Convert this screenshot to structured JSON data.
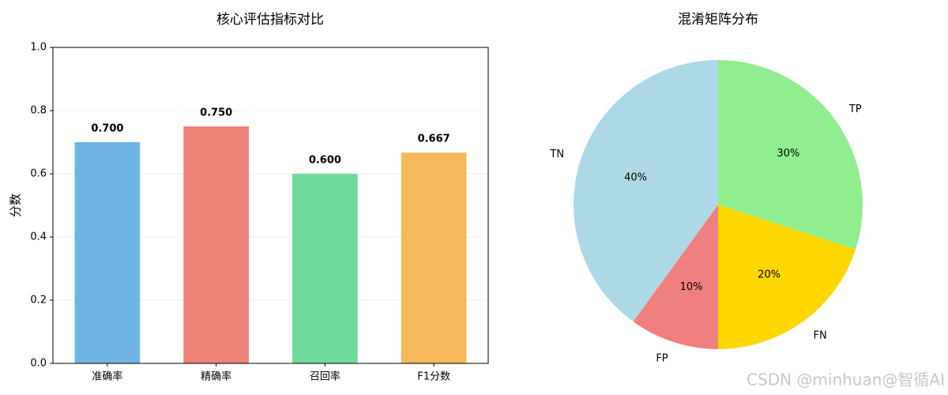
{
  "chart_data": [
    {
      "type": "bar",
      "title": "核心评估指标对比",
      "ylabel": "分数",
      "categories": [
        "准确率",
        "精确率",
        "召回率",
        "F1分数"
      ],
      "values": [
        0.7,
        0.75,
        0.6,
        0.667
      ],
      "value_labels": [
        "0.700",
        "0.750",
        "0.600",
        "0.667"
      ],
      "colors": [
        "#6fb5e3",
        "#ee8277",
        "#6fdb9b",
        "#f3b95a"
      ],
      "ylim": [
        0,
        1
      ],
      "yticks": [
        {
          "value": 0,
          "label": "0.0"
        },
        0.2,
        0.4,
        0.6,
        0.8,
        {
          "value": 1,
          "label": "1.0"
        }
      ],
      "grid": true
    },
    {
      "type": "pie",
      "title": "混淆矩阵分布",
      "categories": [
        "TP",
        "FN",
        "FP",
        "TN"
      ],
      "values": [
        30,
        20,
        10,
        40
      ],
      "value_labels": [
        "30%",
        "20%",
        "10%",
        "40%"
      ],
      "colors": [
        "#90ee90",
        "#ffd700",
        "#f08080",
        "#add8e6"
      ]
    }
  ],
  "watermark": "CSDN @minhuan@智循AI"
}
